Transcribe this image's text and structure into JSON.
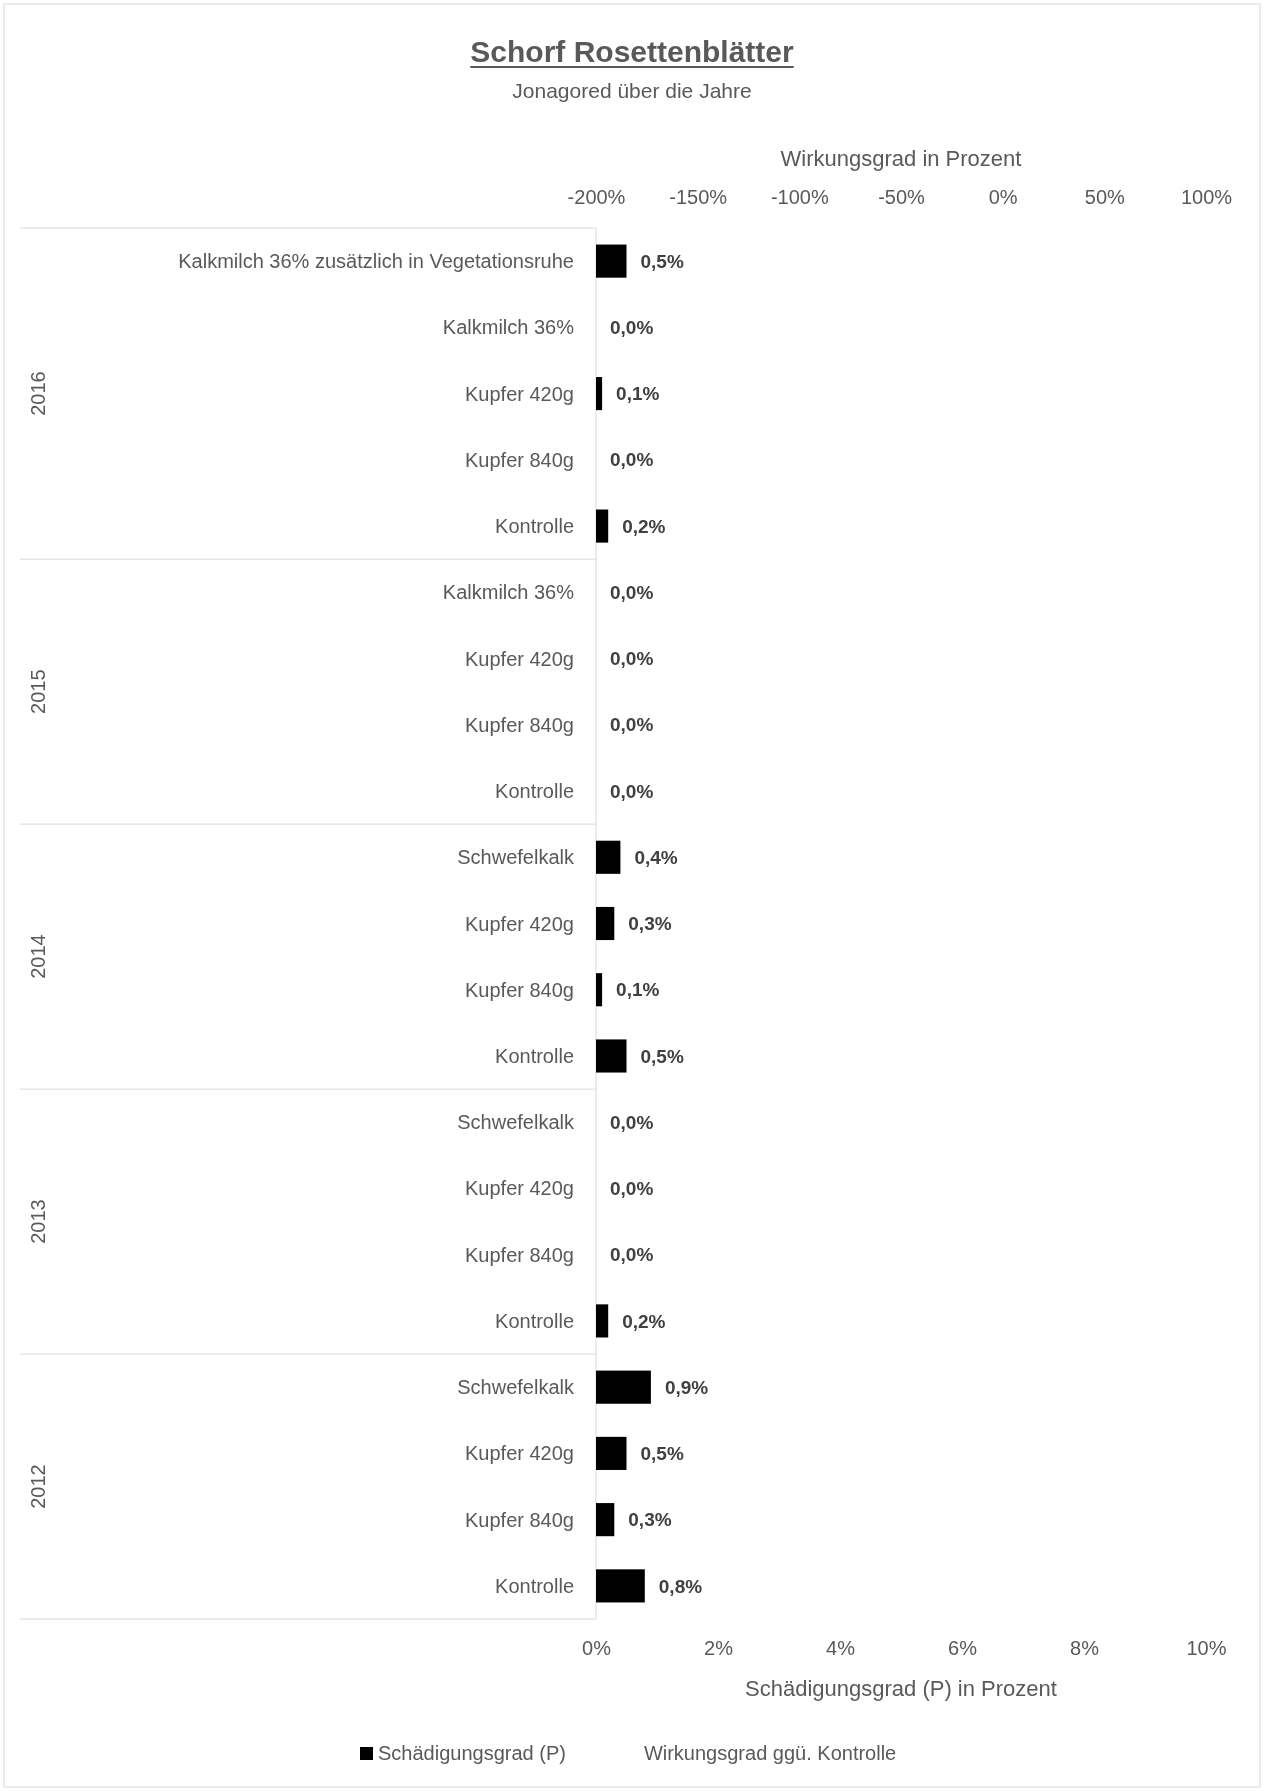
{
  "chart_data": {
    "type": "bar",
    "orientation": "horizontal",
    "title": "Schorf Rosettenblätter",
    "subtitle": "Jonagored über die Jahre",
    "categories": [
      "Kalkmilch 36% zusätzlich in Vegetationsruhe",
      "Kalkmilch 36%",
      "Kupfer 420g",
      "Kupfer 840g",
      "Kontrolle",
      "Kalkmilch 36%",
      "Kupfer 420g",
      "Kupfer 840g",
      "Kontrolle",
      "Schwefelkalk",
      "Kupfer 420g",
      "Kupfer 840g",
      "Kontrolle",
      "Schwefelkalk",
      "Kupfer 420g",
      "Kupfer 840g",
      "Kontrolle",
      "Schwefelkalk",
      "Kupfer 420g",
      "Kupfer 840g",
      "Kontrolle"
    ],
    "series": [
      {
        "name": "Schädigungsgrad (P)",
        "color": "#000000",
        "values": [
          0.5,
          0,
          0.1,
          0,
          0.2,
          0,
          0,
          0,
          0,
          0.4,
          0.3,
          0.1,
          0.5,
          0,
          0,
          0,
          0.2,
          0.9,
          0.5,
          0.3,
          0.8
        ],
        "value_labels": [
          "0,5%",
          "0,0%",
          "0,1%",
          "0,0%",
          "0,2%",
          "0,0%",
          "0,0%",
          "0,0%",
          "0,0%",
          "0,4%",
          "0,3%",
          "0,1%",
          "0,5%",
          "0,0%",
          "0,0%",
          "0,0%",
          "0,2%",
          "0,9%",
          "0,5%",
          "0,3%",
          "0,8%"
        ]
      },
      {
        "name": "Wirkungsgrad ggü. Kontrolle",
        "values": [
          null,
          null,
          null,
          null,
          null,
          null,
          null,
          null,
          null,
          null,
          null,
          null,
          null,
          null,
          null,
          null,
          null,
          null,
          null,
          null,
          null
        ]
      }
    ],
    "xlabel": "Schädigungsgrad (P) in Prozent",
    "x2label": "Wirkungsgrad in Prozent",
    "xlim": [
      0,
      10
    ],
    "xticks": [
      {
        "value": 0,
        "label": "0%"
      },
      {
        "value": 2,
        "label": "2%"
      },
      {
        "value": 4,
        "label": "4%"
      },
      {
        "value": 6,
        "label": "6%"
      },
      {
        "value": 8,
        "label": "8%"
      },
      {
        "value": 10,
        "label": "10%"
      }
    ],
    "x2lim": [
      -200,
      100
    ],
    "x2ticks": [
      {
        "value": -200,
        "label": "-200%"
      },
      {
        "value": -150,
        "label": "-150%"
      },
      {
        "value": -100,
        "label": "-100%"
      },
      {
        "value": -50,
        "label": "-50%"
      },
      {
        "value": 0,
        "label": "0%"
      },
      {
        "value": 50,
        "label": "50%"
      },
      {
        "value": 100,
        "label": "100%"
      }
    ],
    "annotations": [
      "2016",
      "2015",
      "2014",
      "2013",
      "2012"
    ],
    "legend": "bottom",
    "grid": false
  }
}
